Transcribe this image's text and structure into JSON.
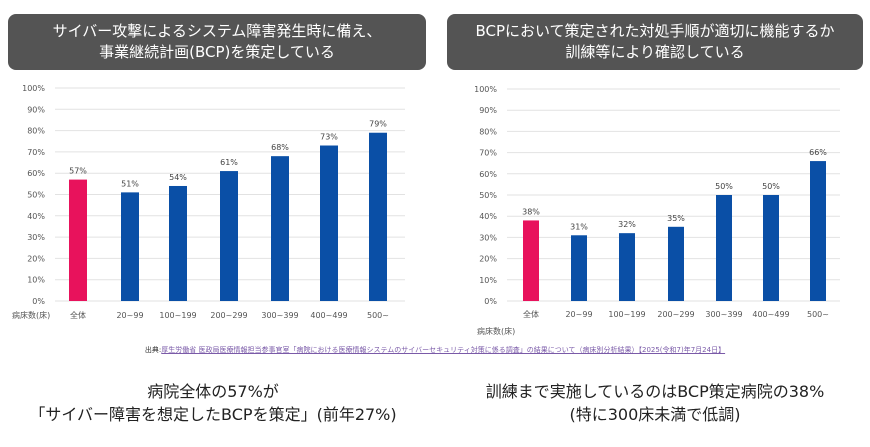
{
  "chart_data": [
    {
      "type": "bar",
      "title": "サイバー攻撃によるシステム障害発生時に備え、\n事業継続計画(BCP)を策定している",
      "title_lines": [
        "サイバー攻撃によるシステム障害発生時に備え、",
        "事業継続計画(BCP)を策定している"
      ],
      "xlabel": "病床数(床)",
      "ylabel": "",
      "ylim": [
        0,
        100
      ],
      "yticks": [
        "0%",
        "10%",
        "20%",
        "30%",
        "40%",
        "50%",
        "60%",
        "70%",
        "80%",
        "90%",
        "100%"
      ],
      "grid": true,
      "categories": [
        "全体",
        "20~99",
        "100~199",
        "200~299",
        "300~399",
        "400~499",
        "500~"
      ],
      "values": [
        57,
        51,
        54,
        61,
        68,
        73,
        79
      ],
      "labels": [
        "57%",
        "51%",
        "54%",
        "61%",
        "68%",
        "73%",
        "79%"
      ],
      "colors": {
        "highlight": "#e8125c",
        "bar": "#0a4fa6"
      }
    },
    {
      "type": "bar",
      "title": "BCPにおいて策定された対処手順が適切に機能するか\n訓練等により確認している",
      "title_lines": [
        "BCPにおいて策定された対処手順が適切に機能するか",
        "訓練等により確認している"
      ],
      "xlabel": "病床数(床)",
      "ylabel": "",
      "ylim": [
        0,
        100
      ],
      "yticks": [
        "0%",
        "10%",
        "20%",
        "30%",
        "40%",
        "50%",
        "60%",
        "70%",
        "80%",
        "90%",
        "100%"
      ],
      "grid": true,
      "categories": [
        "全体",
        "20~99",
        "100~199",
        "200~299",
        "300~399",
        "400~499",
        "500~"
      ],
      "values": [
        38,
        31,
        32,
        35,
        50,
        50,
        66
      ],
      "labels": [
        "38%",
        "31%",
        "32%",
        "35%",
        "50%",
        "50%",
        "66%"
      ],
      "colors": {
        "highlight": "#e8125c",
        "bar": "#0a4fa6"
      }
    }
  ],
  "source": {
    "prefix": "出典:",
    "link": "厚生労働省 医政局医療情報担当参事官室「病院における医療情報システムのサイバーセキュリティ対策に係る調査」の結果について（病床別分析結果）【2025(令和7)年7月24日】"
  },
  "captions": {
    "left": [
      "病院全体の57%が",
      "「サイバー障害を想定したBCPを策定」(前年27%)"
    ],
    "right": [
      "訓練まで実施しているのはBCP策定病院の38%",
      "(特に300床未満で低調)"
    ]
  }
}
